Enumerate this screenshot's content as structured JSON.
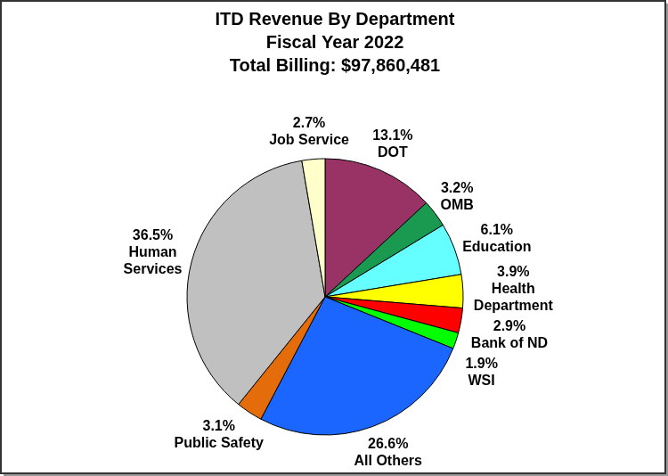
{
  "chart_data": {
    "type": "pie",
    "title": [
      "ITD Revenue By Department",
      "Fiscal Year 2022",
      "Total Billing: $97,860,481"
    ],
    "categories": [
      "DOT",
      "OMB",
      "Education",
      "Health Department",
      "Bank of ND",
      "WSI",
      "All Others",
      "Public Safety",
      "Human Services",
      "Job Service"
    ],
    "values": [
      13.1,
      3.2,
      6.1,
      3.9,
      2.9,
      1.9,
      26.6,
      3.1,
      36.5,
      2.7
    ],
    "value_labels": [
      "13.1%",
      "3.2%",
      "6.1%",
      "3.9%",
      "2.9%",
      "1.9%",
      "26.6%",
      "3.1%",
      "36.5%",
      "2.7%"
    ],
    "colors": [
      "#993366",
      "#1a9a50",
      "#66ffff",
      "#ffff00",
      "#ff0000",
      "#00ff00",
      "#1a66ff",
      "#e46c0a",
      "#c0c0c0",
      "#ffffcc"
    ],
    "data_labels": true
  }
}
